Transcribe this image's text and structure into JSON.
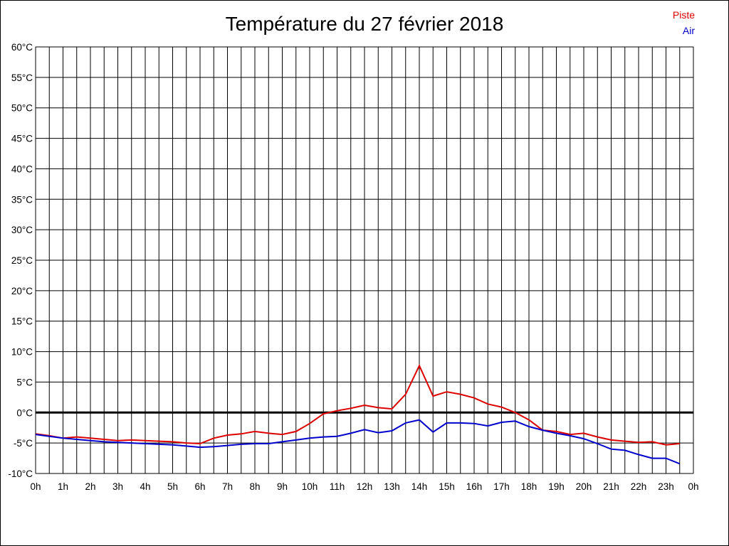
{
  "chart_data": {
    "type": "line",
    "title": "Température du 27 février 2018",
    "xlabel": "",
    "ylabel": "",
    "x_ticks": [
      "0h",
      "1h",
      "2h",
      "3h",
      "4h",
      "5h",
      "6h",
      "7h",
      "8h",
      "9h",
      "10h",
      "11h",
      "12h",
      "13h",
      "14h",
      "15h",
      "16h",
      "17h",
      "18h",
      "19h",
      "20h",
      "21h",
      "22h",
      "23h",
      "0h"
    ],
    "y_ticks": [
      "-10°C",
      "-5°C",
      "0°C",
      "5°C",
      "10°C",
      "15°C",
      "20°C",
      "25°C",
      "30°C",
      "35°C",
      "40°C",
      "45°C",
      "50°C",
      "55°C",
      "60°C"
    ],
    "xlim": [
      0,
      24
    ],
    "ylim": [
      -10,
      60
    ],
    "grid": true,
    "zero_line": true,
    "legend_position": "top-right",
    "series": [
      {
        "name": "Piste",
        "color": "#dd0000",
        "x": [
          0,
          0.5,
          1,
          1.5,
          2,
          2.5,
          3,
          3.5,
          4,
          4.5,
          5,
          5.5,
          6,
          6.5,
          7,
          7.5,
          8,
          8.5,
          9,
          9.5,
          10,
          10.5,
          11,
          11.5,
          12,
          12.5,
          13,
          13.5,
          14,
          14.5,
          15,
          15.5,
          16,
          16.5,
          17,
          17.5,
          18,
          18.5,
          19,
          19.5,
          20,
          20.5,
          21,
          21.5,
          22,
          22.5,
          23,
          23.5
        ],
        "y": [
          -3.5,
          -3.8,
          -4.2,
          -4.0,
          -4.2,
          -4.4,
          -4.6,
          -4.5,
          -4.6,
          -4.7,
          -4.8,
          -5.0,
          -5.1,
          -4.2,
          -3.7,
          -3.5,
          -3.1,
          -3.4,
          -3.6,
          -3.1,
          -1.8,
          -0.2,
          0.3,
          0.7,
          1.2,
          0.8,
          0.6,
          3.0,
          7.7,
          2.7,
          3.4,
          3.0,
          2.4,
          1.4,
          0.9,
          0.0,
          -1.2,
          -2.9,
          -3.1,
          -3.6,
          -3.4,
          -4.0,
          -4.5,
          -4.7,
          -4.9,
          -4.8,
          -5.3,
          -5.1
        ]
      },
      {
        "name": "Air",
        "color": "#0000cc",
        "x": [
          0,
          0.5,
          1,
          1.5,
          2,
          2.5,
          3,
          3.5,
          4,
          4.5,
          5,
          5.5,
          6,
          6.5,
          7,
          7.5,
          8,
          8.5,
          9,
          9.5,
          10,
          10.5,
          11,
          11.5,
          12,
          12.5,
          13,
          13.5,
          14,
          14.5,
          15,
          15.5,
          16,
          16.5,
          17,
          17.5,
          18,
          18.5,
          19,
          19.5,
          20,
          20.5,
          21,
          21.5,
          22,
          22.5,
          23,
          23.5
        ],
        "y": [
          -3.6,
          -3.9,
          -4.2,
          -4.4,
          -4.6,
          -4.8,
          -4.9,
          -5.0,
          -5.1,
          -5.2,
          -5.3,
          -5.5,
          -5.7,
          -5.6,
          -5.4,
          -5.2,
          -5.1,
          -5.1,
          -4.8,
          -4.5,
          -4.2,
          -4.0,
          -3.9,
          -3.4,
          -2.8,
          -3.3,
          -3.0,
          -1.7,
          -1.2,
          -3.2,
          -1.7,
          -1.7,
          -1.8,
          -2.2,
          -1.6,
          -1.4,
          -2.3,
          -2.9,
          -3.4,
          -3.8,
          -4.3,
          -5.1,
          -6.0,
          -6.2,
          -6.9,
          -7.5,
          -7.5,
          -8.4
        ]
      }
    ]
  }
}
